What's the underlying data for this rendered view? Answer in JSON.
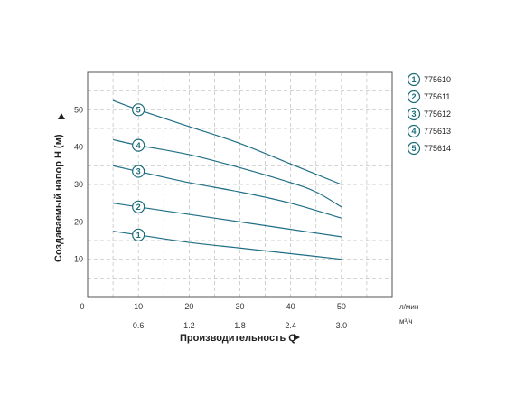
{
  "chart_data": {
    "type": "line",
    "x_primary": {
      "ticks": [
        0,
        10,
        20,
        30,
        40,
        50
      ],
      "unit": "л/мин",
      "range": [
        0,
        60
      ]
    },
    "x_secondary": {
      "ticks": [
        "0.6",
        "1.2",
        "1.8",
        "2.4",
        "3.0"
      ],
      "unit": "м³/ч",
      "tick_positions_lpm": [
        10,
        20,
        30,
        40,
        50
      ]
    },
    "xlabel": "Производительность Q",
    "ylabel": "Создаваемый напор H (м)",
    "y": {
      "ticks": [
        10,
        20,
        30,
        40,
        50
      ],
      "range": [
        0,
        60
      ]
    },
    "grid": "dashed",
    "legend_position": "right",
    "series": [
      {
        "marker": "1",
        "name": "775610",
        "x": [
          5,
          10,
          20,
          30,
          40,
          50
        ],
        "values": [
          17.5,
          16.5,
          14.5,
          13,
          11.5,
          10
        ]
      },
      {
        "marker": "2",
        "name": "775611",
        "x": [
          5,
          10,
          20,
          30,
          40,
          50
        ],
        "values": [
          25,
          24,
          22,
          20,
          18,
          16
        ]
      },
      {
        "marker": "3",
        "name": "775612",
        "x": [
          5,
          10,
          20,
          30,
          40,
          50
        ],
        "values": [
          35,
          33.5,
          30.5,
          28,
          25,
          21
        ]
      },
      {
        "marker": "4",
        "name": "775613",
        "x": [
          5,
          10,
          20,
          30,
          40,
          45,
          50
        ],
        "values": [
          42,
          40.5,
          38,
          34.5,
          30.5,
          28,
          24
        ]
      },
      {
        "marker": "5",
        "name": "775614",
        "x": [
          5,
          10,
          20,
          30,
          40,
          50
        ],
        "values": [
          52.5,
          50,
          45.5,
          41,
          35.5,
          30
        ]
      }
    ],
    "colors": {
      "line": "#1f6f86",
      "marker_border": "#1b6b7a",
      "grid": "#bdbdbd",
      "frame": "#555555"
    }
  }
}
